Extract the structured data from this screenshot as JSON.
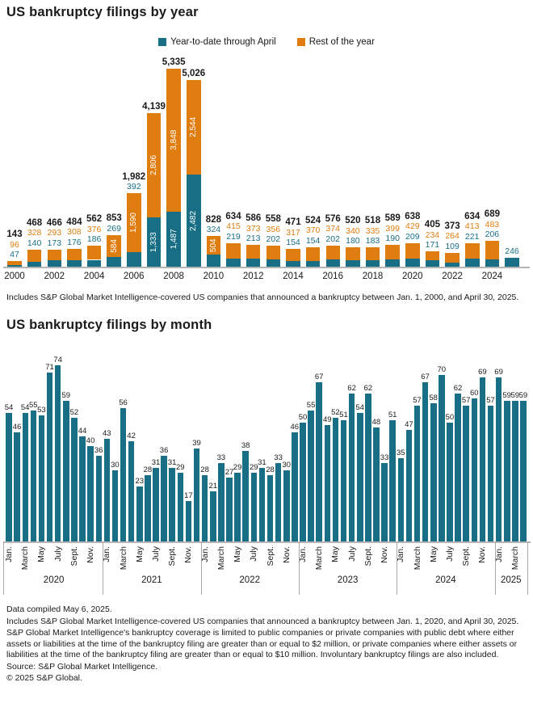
{
  "colors": {
    "teal": "#176e85",
    "orange": "#e07d10",
    "text": "#1a1a1a",
    "axis_gray": "#b5b5b5",
    "inside_label": "#ffffff"
  },
  "chart_data": [
    {
      "type": "bar",
      "stacked": true,
      "title": "US bankruptcy filings by year",
      "legend": [
        "Year-to-date through April",
        "Rest of the year"
      ],
      "legend_position": "top",
      "grid": false,
      "ylim": [
        0,
        5600
      ],
      "categories": [
        "2000",
        "2001",
        "2002",
        "2003",
        "2004",
        "2005",
        "2006",
        "2007",
        "2008",
        "2009",
        "2010",
        "2011",
        "2012",
        "2013",
        "2014",
        "2015",
        "2016",
        "2017",
        "2018",
        "2019",
        "2020",
        "2021",
        "2022",
        "2023",
        "2024",
        "2025"
      ],
      "series": [
        {
          "name": "Year-to-date through April",
          "color": "#176e85",
          "values": [
            47,
            140,
            173,
            176,
            186,
            269,
            392,
            1333,
            1487,
            2482,
            324,
            219,
            213,
            202,
            154,
            154,
            202,
            180,
            183,
            190,
            209,
            171,
            109,
            221,
            206,
            246
          ]
        },
        {
          "name": "Rest of the year",
          "color": "#e07d10",
          "values": [
            96,
            328,
            293,
            308,
            376,
            584,
            1590,
            2806,
            3848,
            2544,
            504,
            415,
            373,
            356,
            317,
            370,
            374,
            340,
            335,
            399,
            429,
            234,
            264,
            413,
            483,
            0
          ]
        }
      ],
      "totals": [
        143,
        468,
        466,
        484,
        562,
        853,
        1982,
        4139,
        5335,
        5026,
        828,
        634,
        586,
        558,
        471,
        524,
        576,
        520,
        518,
        589,
        638,
        405,
        373,
        634,
        689,
        246
      ],
      "x_ticks": [
        "2000",
        "2002",
        "2004",
        "2006",
        "2008",
        "2010",
        "2012",
        "2014",
        "2016",
        "2018",
        "2020",
        "2022",
        "2024"
      ]
    },
    {
      "type": "bar",
      "title": "US bankruptcy filings by month",
      "grid": false,
      "bar_color": "#176e85",
      "month_ticks": [
        "Jan.",
        "March",
        "May",
        "July",
        "Sept.",
        "Nov."
      ],
      "groups": [
        {
          "year": "2020",
          "values": [
            54,
            46,
            54,
            55,
            53,
            71,
            74,
            59,
            52,
            44,
            40,
            36
          ]
        },
        {
          "year": "2021",
          "values": [
            43,
            30,
            56,
            42,
            23,
            28,
            31,
            36,
            31,
            29,
            17,
            39
          ]
        },
        {
          "year": "2022",
          "values": [
            28,
            21,
            33,
            27,
            29,
            38,
            29,
            31,
            28,
            33,
            30,
            46
          ]
        },
        {
          "year": "2023",
          "values": [
            50,
            55,
            67,
            49,
            52,
            51,
            62,
            54,
            62,
            48,
            33,
            51
          ]
        },
        {
          "year": "2024",
          "values": [
            35,
            47,
            57,
            67,
            58,
            70,
            50,
            62,
            57,
            60,
            69,
            57
          ]
        },
        {
          "year": "2025",
          "values": [
            69,
            59,
            59,
            59
          ]
        }
      ]
    }
  ],
  "notes": {
    "yearly_footnote": "Includes S&P Global Market Intelligence-covered US companies that announced a bankruptcy between Jan. 1, 2000, and April 30, 2025.",
    "footer": [
      "Data compiled May 6, 2025.",
      "Includes S&P Global Market Intelligence-covered US companies that announced a bankruptcy between Jan. 1, 2020, and April 30, 2025.",
      "S&P Global Market Intelligence's bankruptcy coverage is limited to public companies or private companies with public debt where either assets or liabilities at the time of the bankruptcy filing are greater than or equal to $2 million, or private companies where either assets or liabilities at the time of the bankruptcy filing are greater than or equal to $10 million. Involuntary bankruptcy filings are also included.",
      "Source: S&P Global Market Intelligence.",
      "© 2025 S&P Global."
    ]
  }
}
